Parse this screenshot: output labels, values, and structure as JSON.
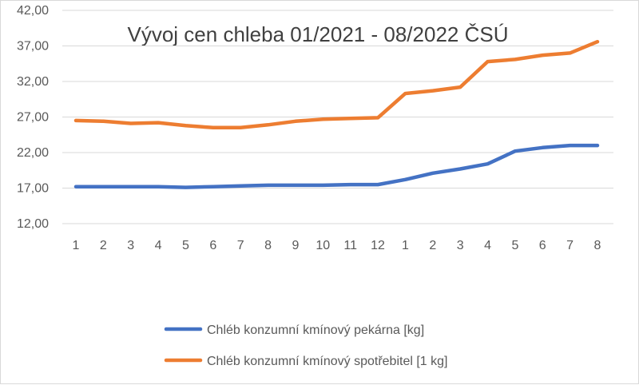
{
  "chart_data": {
    "type": "line",
    "title": "Vývoj cen chleba 01/2021 - 08/2022 ČSÚ",
    "xlabel": "",
    "ylabel": "",
    "categories": [
      "1",
      "2",
      "3",
      "4",
      "5",
      "6",
      "7",
      "8",
      "9",
      "10",
      "11",
      "12",
      "1",
      "2",
      "3",
      "4",
      "5",
      "6",
      "7",
      "8"
    ],
    "ylim": [
      12,
      42
    ],
    "yticks": [
      "12,00",
      "17,00",
      "22,00",
      "27,00",
      "32,00",
      "37,00",
      "42,00"
    ],
    "ytick_values": [
      12,
      17,
      22,
      27,
      32,
      37,
      42
    ],
    "grid": true,
    "legend_position": "bottom",
    "series": [
      {
        "name": "Chléb konzumní kmínový pekárna [kg]",
        "color": "#4472c4",
        "values": [
          17.2,
          17.2,
          17.2,
          17.2,
          17.1,
          17.2,
          17.3,
          17.4,
          17.4,
          17.4,
          17.5,
          17.5,
          18.2,
          19.1,
          19.7,
          20.4,
          22.2,
          22.7,
          23.0,
          23.0
        ]
      },
      {
        "name": "Chléb konzumní kmínový spotřebitel [1 kg]",
        "color": "#ed7d31",
        "values": [
          26.5,
          26.4,
          26.1,
          26.2,
          25.8,
          25.5,
          25.5,
          25.9,
          26.4,
          26.7,
          26.8,
          26.9,
          30.3,
          30.7,
          31.2,
          34.8,
          35.1,
          35.7,
          36.0,
          37.6
        ]
      }
    ]
  }
}
